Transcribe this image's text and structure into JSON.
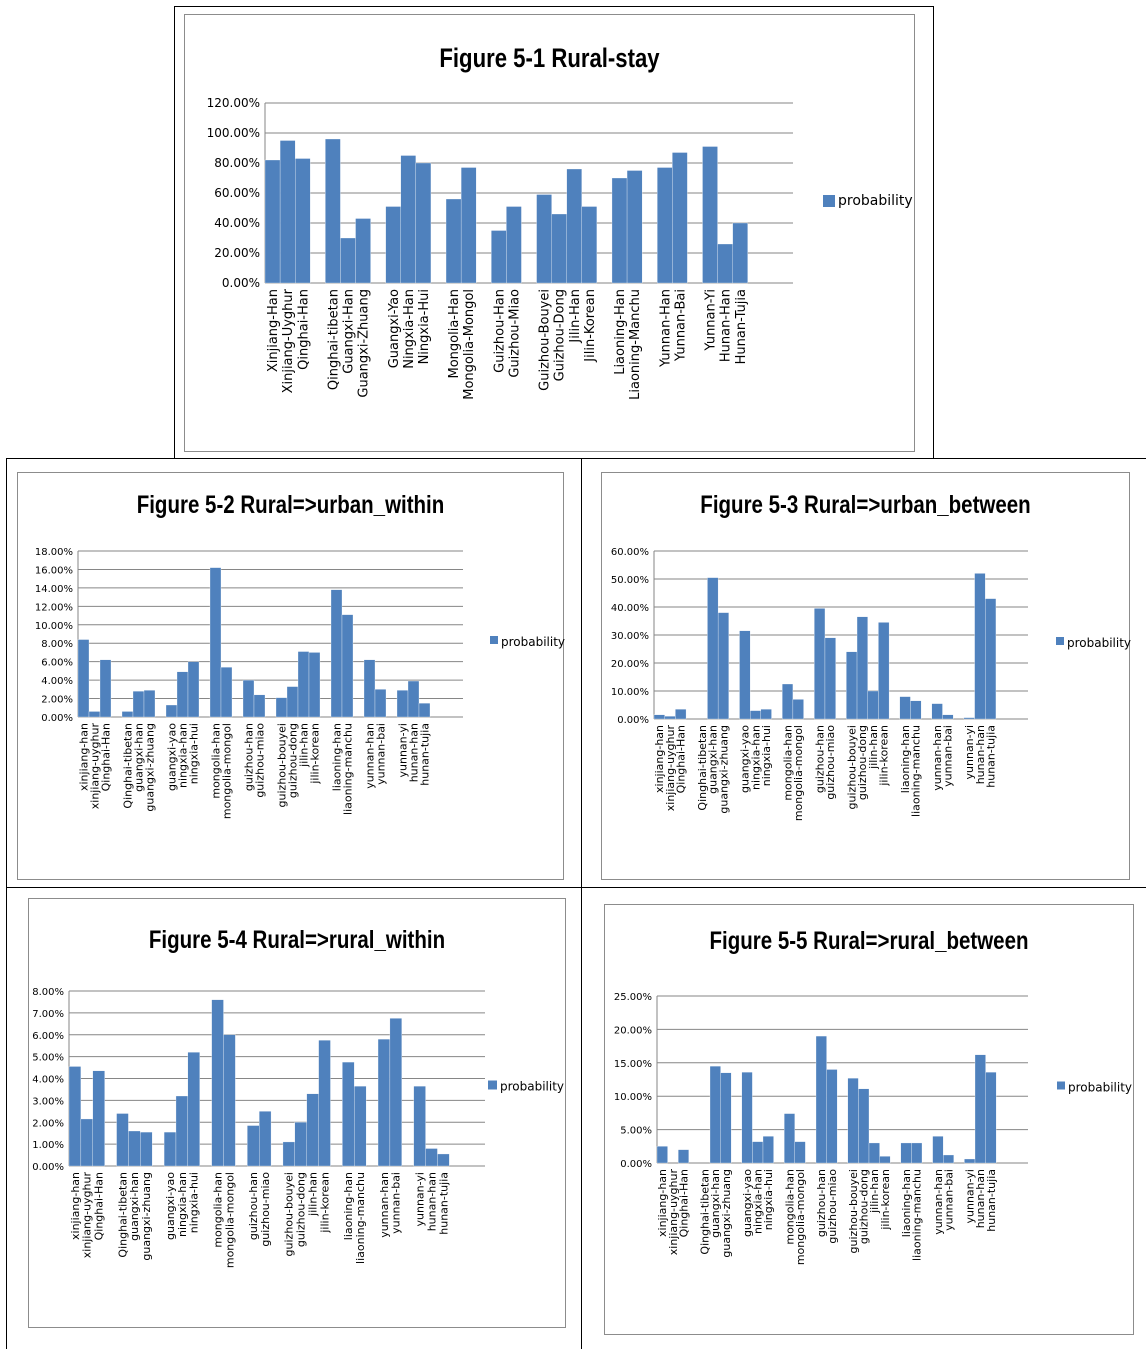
{
  "colors": {
    "bar": "#4f81bd",
    "grid": "#868686",
    "axis": "#868686"
  },
  "chart_data": [
    {
      "type": "bar",
      "title": "Figure 5-1 Rural-stay",
      "legend": [
        "probability"
      ],
      "legend_position": "right",
      "grid": true,
      "ylim": [
        0,
        1.2
      ],
      "yticks": [
        "0.00%",
        "20.00%",
        "40.00%",
        "60.00%",
        "80.00%",
        "100.00%",
        "120.00%"
      ],
      "groups": [
        3,
        3,
        3,
        2,
        2,
        4,
        2,
        2,
        3,
        2
      ],
      "categories": [
        "Xinjiang-Han",
        "Xinjiang-Uyghur",
        "Qinghai-Han",
        "Qinghai-tibetan",
        "Guangxi-Han",
        "Guangxi-Zhuang",
        "Guangxi-Yao",
        "Ningxia-Han",
        "Ningxia-Hui",
        "Mongolia-Han",
        "Mongolia-Mongol",
        "Guizhou-Han",
        "Guizhou-Miao",
        "Guizhou-Bouyei",
        "Guizhou-Dong",
        "Jilin-Han",
        "Jilin-Korean",
        "Liaoning-Han",
        "Liaoning-Manchu",
        "Yunnan-Han",
        "Yunnan-Bai",
        "Yunnan-Yi",
        "Hunan-Han",
        "Hunan-Tujia"
      ],
      "series": [
        {
          "name": "probability",
          "values": [
            0.82,
            0.95,
            0.83,
            0.96,
            0.3,
            0.43,
            0.51,
            0.85,
            0.8,
            0.56,
            0.77,
            0.35,
            0.51,
            0.59,
            0.46,
            0.76,
            0.51,
            0.7,
            0.75,
            0.77,
            0.87,
            0.91,
            0.26,
            0.4
          ]
        }
      ]
    },
    {
      "type": "bar",
      "title": "Figure 5-2 Rural=>urban_within",
      "legend": [
        "probability"
      ],
      "legend_position": "right",
      "grid": true,
      "ylim": [
        0,
        0.18
      ],
      "yticks": [
        "0.00%",
        "2.00%",
        "4.00%",
        "6.00%",
        "8.00%",
        "10.00%",
        "12.00%",
        "14.00%",
        "16.00%",
        "18.00%"
      ],
      "groups": [
        3,
        3,
        3,
        2,
        2,
        4,
        2,
        2,
        3,
        2
      ],
      "categories": [
        "xinjiang-han",
        "xinjiang-uyghur",
        "Qinghai-Han",
        "Qinghai-tibetan",
        "guangxi-han",
        "guangxi-zhuang",
        "guangxi-yao",
        "ningxia-han",
        "ningxia-hui",
        "mongolia-han",
        "mongolia-mongol",
        "guizhou-han",
        "guizhou-miao",
        "guizhou-bouyei",
        "guizhou-dong",
        "jilin-han",
        "jilin-korean",
        "liaoning-han",
        "liaoning-manchu",
        "yunnan-han",
        "yunnan-bai",
        "yunnan-yi",
        "hunan-han",
        "hunan-tujia"
      ],
      "series": [
        {
          "name": "probability",
          "values": [
            0.084,
            0.006,
            0.062,
            0.006,
            0.028,
            0.029,
            0.013,
            0.049,
            0.06,
            0.162,
            0.054,
            0.04,
            0.024,
            0.021,
            0.033,
            0.071,
            0.07,
            0.138,
            0.111,
            0.062,
            0.03,
            0.029,
            0.039,
            0.015
          ]
        }
      ]
    },
    {
      "type": "bar",
      "title": "Figure 5-3 Rural=>urban_between",
      "legend": [
        "probability"
      ],
      "legend_position": "right",
      "grid": true,
      "ylim": [
        0,
        0.6
      ],
      "yticks": [
        "0.00%",
        "10.00%",
        "20.00%",
        "30.00%",
        "40.00%",
        "50.00%",
        "60.00%"
      ],
      "groups": [
        3,
        3,
        3,
        2,
        2,
        4,
        2,
        2,
        3,
        2
      ],
      "categories": [
        "xinjiang-han",
        "xinjiang-uyghur",
        "Qinghai-Han",
        "Qinghai-tibetan",
        "guangxi-han",
        "guangxi-zhuang",
        "guangxi-yao",
        "ningxia-han",
        "ningxia-hui",
        "mongolia-han",
        "mongolia-mongol",
        "guizhou-han",
        "guizhou-miao",
        "guizhou-bouyei",
        "guizhou-dong",
        "jilin-han",
        "jilin-korean",
        "liaoning-han",
        "liaoning-manchu",
        "yunnan-han",
        "yunnan-bai",
        "yunnan-yi",
        "hunan-han",
        "hunan-tujia"
      ],
      "series": [
        {
          "name": "probability",
          "values": [
            0.015,
            0.01,
            0.035,
            0.0,
            0.505,
            0.38,
            0.315,
            0.03,
            0.035,
            0.125,
            0.07,
            0.395,
            0.29,
            0.24,
            0.365,
            0.1,
            0.345,
            0.08,
            0.065,
            0.055,
            0.015,
            0.005,
            0.52,
            0.43
          ]
        }
      ]
    },
    {
      "type": "bar",
      "title": "Figure 5-4 Rural=>rural_within",
      "legend": [
        "probability"
      ],
      "legend_position": "right",
      "grid": true,
      "ylim": [
        0,
        0.08
      ],
      "yticks": [
        "0.00%",
        "1.00%",
        "2.00%",
        "3.00%",
        "4.00%",
        "5.00%",
        "6.00%",
        "7.00%",
        "8.00%"
      ],
      "groups": [
        3,
        3,
        3,
        2,
        2,
        4,
        2,
        2,
        3,
        2
      ],
      "categories": [
        "xinjiang-han",
        "xinjiang-uyghur",
        "Qinghai-Han",
        "Qinghai-tibetan",
        "guangxi-han",
        "guangxi-zhuang",
        "guangxi-yao",
        "ningxia-han",
        "ningxia-hui",
        "mongolia-han",
        "mongolia-mongol",
        "guizhou-han",
        "guizhou-miao",
        "guizhou-bouyei",
        "guizhou-dong",
        "jilin-han",
        "jilin-korean",
        "liaoning-han",
        "liaoning-manchu",
        "yunnan-han",
        "yunnan-bai",
        "yunnan-yi",
        "hunan-han",
        "hunan-tujia"
      ],
      "series": [
        {
          "name": "probability",
          "values": [
            0.0455,
            0.0215,
            0.0435,
            0.024,
            0.016,
            0.0155,
            0.0155,
            0.032,
            0.052,
            0.076,
            0.06,
            0.0185,
            0.025,
            0.011,
            0.02,
            0.033,
            0.0575,
            0.0475,
            0.0365,
            0.058,
            0.0675,
            0.0365,
            0.008,
            0.0055
          ]
        }
      ]
    },
    {
      "type": "bar",
      "title": "Figure 5-5 Rural=>rural_between",
      "legend": [
        "probability"
      ],
      "legend_position": "right",
      "grid": true,
      "ylim": [
        0,
        0.25
      ],
      "yticks": [
        "0.00%",
        "5.00%",
        "10.00%",
        "15.00%",
        "20.00%",
        "25.00%"
      ],
      "groups": [
        3,
        3,
        3,
        2,
        2,
        4,
        2,
        2,
        3,
        2
      ],
      "categories": [
        "xinjiang-han",
        "xinjiang-uyghur",
        "Qinghai-Han",
        "Qinghai-tibetan",
        "guangxi-han",
        "guangxi-zhuang",
        "guangxi-yao",
        "ningxia-han",
        "ningxia-hui",
        "mongolia-han",
        "mongolia-mongol",
        "guizhou-han",
        "guizhou-miao",
        "guizhou-bouyei",
        "guizhou-dong",
        "jilin-han",
        "jilin-korean",
        "liaoning-han",
        "liaoning-manchu",
        "yunnan-han",
        "yunnan-bai",
        "yunnan-yi",
        "hunan-han",
        "hunan-tujia"
      ],
      "series": [
        {
          "name": "probability",
          "values": [
            0.025,
            0.0,
            0.02,
            0.0,
            0.145,
            0.135,
            0.136,
            0.032,
            0.04,
            0.074,
            0.032,
            0.19,
            0.14,
            0.127,
            0.111,
            0.03,
            0.01,
            0.03,
            0.03,
            0.04,
            0.012,
            0.006,
            0.162,
            0.136
          ]
        }
      ]
    }
  ]
}
